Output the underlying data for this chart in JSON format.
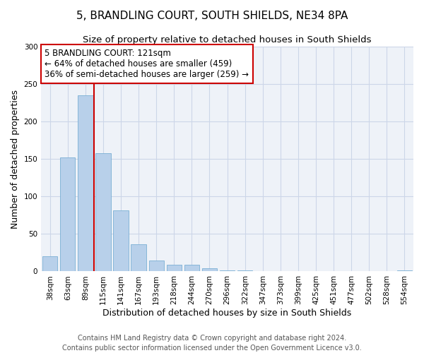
{
  "title": "5, BRANDLING COURT, SOUTH SHIELDS, NE34 8PA",
  "subtitle": "Size of property relative to detached houses in South Shields",
  "xlabel": "Distribution of detached houses by size in South Shields",
  "ylabel": "Number of detached properties",
  "bin_labels": [
    "38sqm",
    "63sqm",
    "89sqm",
    "115sqm",
    "141sqm",
    "167sqm",
    "193sqm",
    "218sqm",
    "244sqm",
    "270sqm",
    "296sqm",
    "322sqm",
    "347sqm",
    "373sqm",
    "399sqm",
    "425sqm",
    "451sqm",
    "477sqm",
    "502sqm",
    "528sqm",
    "554sqm"
  ],
  "bar_values": [
    20,
    152,
    235,
    158,
    81,
    36,
    15,
    9,
    9,
    4,
    1,
    1,
    0,
    0,
    0,
    0,
    0,
    0,
    0,
    0,
    1
  ],
  "bar_color": "#b8d0ea",
  "bar_edge_color": "#7aafd4",
  "vline_x": 2.5,
  "vline_color": "#cc0000",
  "annotation_box_text": "5 BRANDLING COURT: 121sqm\n← 64% of detached houses are smaller (459)\n36% of semi-detached houses are larger (259) →",
  "annotation_box_color": "#cc0000",
  "annotation_box_facecolor": "white",
  "ylim": [
    0,
    300
  ],
  "yticks": [
    0,
    50,
    100,
    150,
    200,
    250,
    300
  ],
  "footer_line1": "Contains HM Land Registry data © Crown copyright and database right 2024.",
  "footer_line2": "Contains public sector information licensed under the Open Government Licence v3.0.",
  "background_color": "#eef2f8",
  "grid_color": "#ccd6e8",
  "title_fontsize": 11,
  "subtitle_fontsize": 9.5,
  "axis_label_fontsize": 9,
  "tick_fontsize": 7.5,
  "annotation_fontsize": 8.5,
  "footer_fontsize": 7
}
